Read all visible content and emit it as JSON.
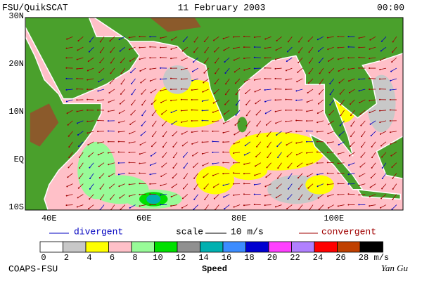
{
  "header": {
    "left": "FSU/QuikSCAT",
    "center": "11 February 2003",
    "right": "00:00"
  },
  "map": {
    "lat_labels": [
      "30N",
      "20N",
      "10N",
      "EQ",
      "10S"
    ],
    "lon_labels": [
      "40E",
      "60E",
      "80E",
      "100E"
    ]
  },
  "legend": {
    "divergent": "divergent",
    "scale": "scale",
    "scale_value": "10 m/s",
    "convergent": "convergent"
  },
  "colorbar": {
    "levels": [
      0,
      2,
      4,
      6,
      8,
      10,
      12,
      14,
      16,
      18,
      20,
      22,
      24,
      26,
      28
    ],
    "unit": "m/s",
    "title": "Speed",
    "colors": [
      "#ffffff",
      "#c8c8c8",
      "#ffff00",
      "#ffc0c8",
      "#98fb98",
      "#00e000",
      "#909090",
      "#00b0b0",
      "#3c8cff",
      "#0000d0",
      "#ff40ff",
      "#b080ff",
      "#ff0000",
      "#c04000",
      "#000000"
    ]
  },
  "footer": {
    "left": "COAPS-FSU",
    "right": "Yan Gu"
  }
}
